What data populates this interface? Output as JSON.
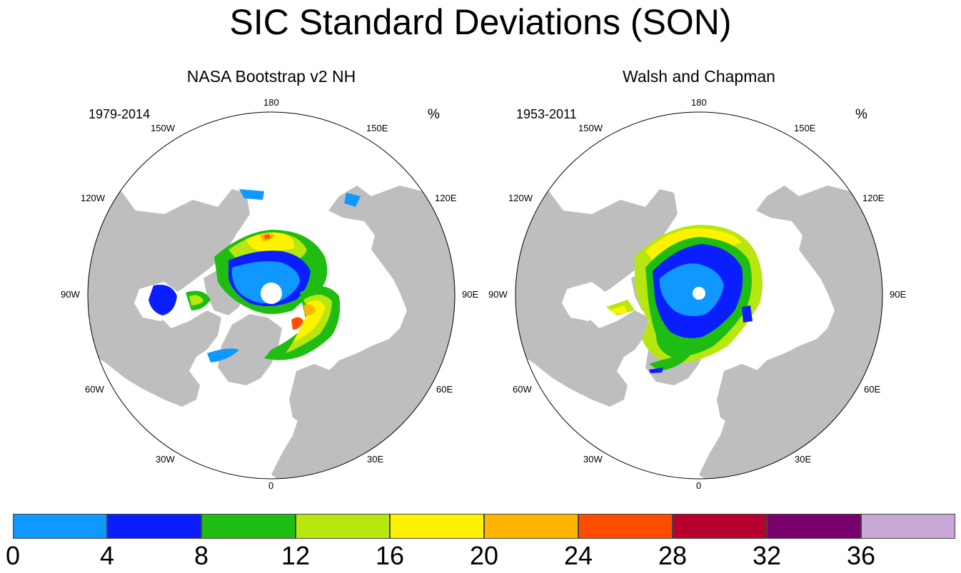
{
  "title": "SIC Standard Deviations (SON)",
  "colors": {
    "land": "#bebebe",
    "ocean": "#ffffff",
    "coast": "#000000"
  },
  "panels": [
    {
      "title": "NASA Bootstrap v2 NH",
      "period": "1979-2014",
      "unit": "%",
      "lon_labels": [
        "180",
        "150E",
        "120E",
        "90E",
        "60E",
        "30E",
        "0",
        "30W",
        "60W",
        "90W",
        "120W",
        "150W"
      ]
    },
    {
      "title": "Walsh and Chapman",
      "period": "1953-2011",
      "unit": "%",
      "lon_labels": [
        "180",
        "150E",
        "120E",
        "90E",
        "60E",
        "30E",
        "0",
        "30W",
        "60W",
        "90W",
        "120W",
        "150W"
      ]
    }
  ],
  "colorbar": {
    "labels": [
      "0",
      "4",
      "8",
      "12",
      "16",
      "20",
      "24",
      "28",
      "32",
      "36"
    ],
    "colors": [
      "#0f98ff",
      "#0a1eff",
      "#1fbc12",
      "#b8e60f",
      "#fff200",
      "#ffb400",
      "#ff4c00",
      "#b8002e",
      "#7a006d",
      "#c8a8d6"
    ]
  }
}
